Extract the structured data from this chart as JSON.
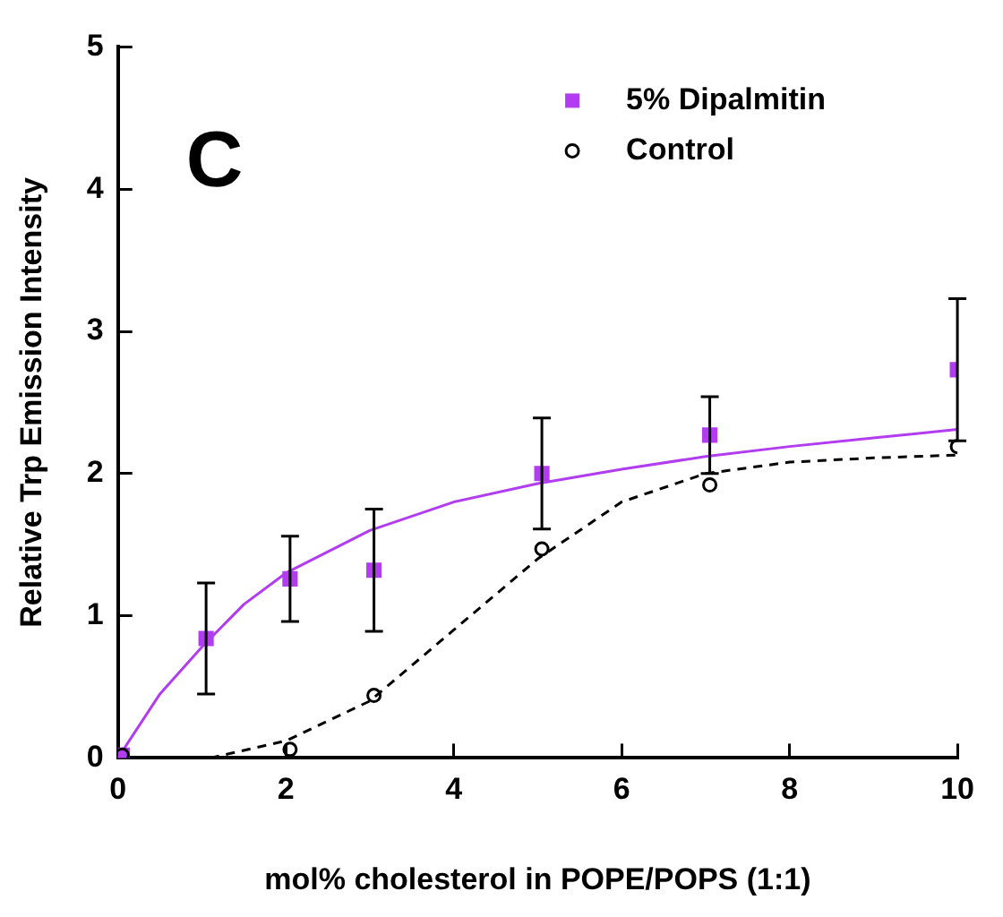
{
  "chart_data": {
    "type": "scatter",
    "xlabel": "mol% cholesterol in POPE/POPS (1:1)",
    "ylabel": "Relative Trp Emission Intensity",
    "annotations": [
      "C"
    ],
    "xlim": [
      0,
      10
    ],
    "ylim": [
      0,
      5
    ],
    "xticks": [
      0,
      2,
      4,
      6,
      8,
      10
    ],
    "yticks": [
      0,
      1,
      2,
      3,
      4,
      5
    ],
    "grid": false,
    "legend": "top right",
    "series": [
      {
        "name": "5% Dipalmitin",
        "type": "scatter",
        "marker": "square",
        "color": "#b23cf0",
        "x": [
          0.05,
          1.05,
          2.05,
          3.05,
          5.05,
          7.05,
          10
        ],
        "values": [
          0.02,
          0.84,
          1.26,
          1.32,
          2.0,
          2.27,
          2.73
        ],
        "errors": [
          null,
          0.39,
          0.3,
          0.43,
          0.39,
          0.27,
          0.5
        ]
      },
      {
        "name": "Control",
        "type": "scatter",
        "marker": "circle",
        "color": "#000000",
        "x": [
          0.05,
          2.05,
          3.05,
          5.05,
          7.05,
          10
        ],
        "values": [
          0.02,
          0.06,
          0.44,
          1.47,
          1.92,
          2.19
        ]
      },
      {
        "type": "line",
        "marker": "none",
        "line_style": "solid",
        "color": "#b23cf0",
        "x": [
          0,
          0.5,
          1,
          1.5,
          2,
          3,
          4,
          5,
          6,
          7,
          8,
          9,
          10
        ],
        "values": [
          0,
          0.45,
          0.78,
          1.08,
          1.3,
          1.6,
          1.8,
          1.93,
          2.03,
          2.12,
          2.19,
          2.25,
          2.31
        ]
      },
      {
        "type": "line",
        "marker": "none",
        "line_style": "dashed",
        "color": "#000000",
        "x": [
          1.1,
          2,
          3,
          4,
          5,
          6,
          7,
          8,
          9,
          10
        ],
        "values": [
          0,
          0.12,
          0.4,
          0.9,
          1.4,
          1.8,
          2.0,
          2.08,
          2.11,
          2.13
        ]
      }
    ]
  }
}
